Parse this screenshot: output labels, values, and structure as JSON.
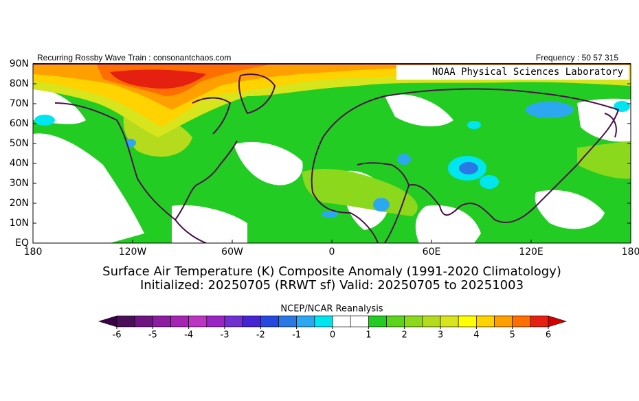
{
  "header": {
    "left": "Recurring Rossby Wave Train : consonantchaos.com",
    "right": "Frequency : 50 57 315"
  },
  "map": {
    "credit": "NOAA Physical Sciences Laboratory",
    "lat_labels": [
      "90N",
      "80N",
      "70N",
      "60N",
      "50N",
      "40N",
      "30N",
      "20N",
      "10N",
      "EQ"
    ],
    "lon_labels": [
      "180",
      "120W",
      "60W",
      "0",
      "60E",
      "120E",
      "180"
    ]
  },
  "title": {
    "line1": "Surface Air Temperature (K) Composite Anomaly (1991-2020 Climatology)",
    "line2": "Initialized: 20250705 (RRWT sf) Valid: 20250705 to 20251003"
  },
  "colorbar": {
    "label": "NCEP/NCAR Reanalysis",
    "ticks": [
      -6,
      -5,
      -4,
      -3,
      -2,
      -1,
      0,
      1,
      2,
      3,
      4,
      5,
      6
    ],
    "colors": [
      "#4b0f5a",
      "#6e1582",
      "#8c1ca0",
      "#a524b4",
      "#bc34c4",
      "#9a24c4",
      "#7030d0",
      "#4424d4",
      "#2448e0",
      "#2a78e6",
      "#2ca8f0",
      "#00e6f0",
      "#ffffff",
      "#ffffff",
      "#22cc22",
      "#5cd41c",
      "#8cd81c",
      "#b4dc1c",
      "#d8e41c",
      "#ffff00",
      "#ffd200",
      "#ffa000",
      "#ff6e00",
      "#e62010"
    ],
    "under_color": "#3a0048",
    "over_color": "#d20000"
  }
}
